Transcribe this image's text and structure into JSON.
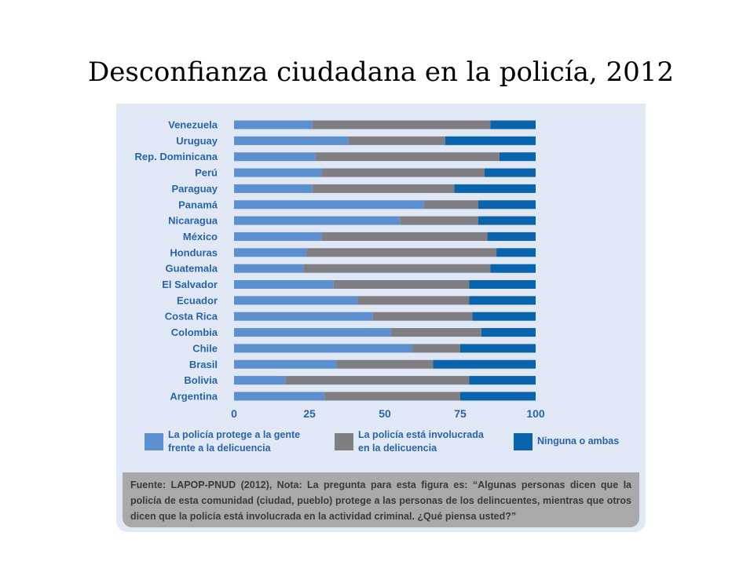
{
  "title": "Desconfianza ciudadana en la policía, 2012",
  "colors": {
    "protege": "#5b8fd0",
    "involucrada": "#7f7f83",
    "ninguna": "#0a63ad",
    "panel": "#dfe8f4",
    "source_box": "#a9a9ab",
    "label_text": "#2a63ad"
  },
  "chart_data": {
    "type": "bar",
    "orientation": "horizontal",
    "stacked": true,
    "categories": [
      "Venezuela",
      "Uruguay",
      "Rep. Dominicana",
      "Perú",
      "Paraguay",
      "Panamá",
      "Nicaragua",
      "México",
      "Honduras",
      "Guatemala",
      "El Salvador",
      "Ecuador",
      "Costa Rica",
      "Colombia",
      "Chile",
      "Brasil",
      "Bolivia",
      "Argentina"
    ],
    "series": [
      {
        "name": "La policía protege a la gente frente a la delicuencia",
        "values": [
          26,
          38,
          27,
          29,
          26,
          63,
          55,
          29,
          24,
          23,
          33,
          41,
          46,
          52,
          59,
          34,
          17,
          30
        ]
      },
      {
        "name": "La policía está involucrada en la delicuencia",
        "values": [
          59,
          32,
          61,
          54,
          47,
          18,
          26,
          55,
          63,
          62,
          45,
          37,
          33,
          30,
          16,
          32,
          61,
          45
        ]
      },
      {
        "name": "Ninguna o ambas",
        "values": [
          15,
          30,
          12,
          17,
          27,
          19,
          19,
          16,
          13,
          15,
          22,
          22,
          21,
          18,
          25,
          34,
          22,
          25
        ]
      }
    ],
    "xlim": [
      0,
      100
    ],
    "xticks": [
      "0",
      "25",
      "50",
      "75",
      "100"
    ],
    "legend_position": "bottom"
  },
  "legend": [
    {
      "line1": "La policía protege a la gente",
      "line2": "frente a la delicuencia",
      "color_key": "protege"
    },
    {
      "line1": "La policía está involucrada",
      "line2": "en la delicuencia",
      "color_key": "involucrada"
    },
    {
      "line1": "Ninguna o ambas",
      "line2": "",
      "color_key": "ninguna"
    }
  ],
  "source": "Fuente: LAPOP-PNUD (2012), Nota: La pregunta para esta figura es: “Algunas personas dicen que la policía de esta comunidad (ciudad, pueblo) protege a las personas de los delincuentes, mientras que otros dicen que la policía está involucrada en la actividad criminal. ¿Qué piensa usted?”"
}
